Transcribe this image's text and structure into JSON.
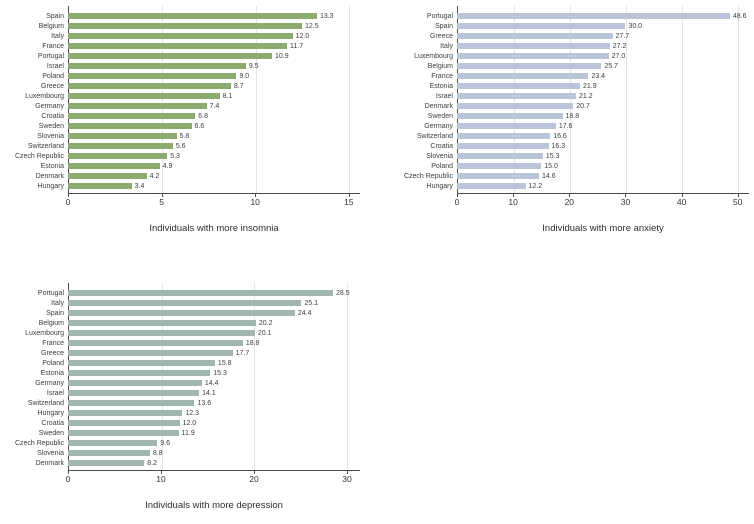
{
  "page": {
    "background": "#ffffff"
  },
  "chart_data": [
    {
      "type": "bar",
      "orientation": "horizontal",
      "title": "",
      "xlabel": "Individuals with more insomnia",
      "ylabel": "",
      "legend": "none",
      "grid": "vertical light gridlines at ticks",
      "bar_color": "#8cab6f",
      "xticks": [
        0,
        5,
        10,
        15
      ],
      "xlim": [
        0,
        15.6
      ],
      "categories": [
        "Spain",
        "Belgium",
        "Italy",
        "France",
        "Portugal",
        "Israel",
        "Poland",
        "Greece",
        "Luxembourg",
        "Germany",
        "Croatia",
        "Sweden",
        "Slovenia",
        "Switzerland",
        "Czech Republic",
        "Estonia",
        "Denmark",
        "Hungary"
      ],
      "values": [
        13.3,
        12.5,
        12.0,
        11.7,
        10.9,
        9.5,
        9.0,
        8.7,
        8.1,
        7.4,
        6.8,
        6.6,
        5.8,
        5.6,
        5.3,
        4.9,
        4.2,
        3.4
      ]
    },
    {
      "type": "bar",
      "orientation": "horizontal",
      "title": "",
      "xlabel": "Individuals with more anxiety",
      "ylabel": "",
      "legend": "none",
      "grid": "vertical light gridlines at ticks",
      "bar_color": "#b9c5d8",
      "xticks": [
        0,
        10,
        20,
        30,
        40,
        50
      ],
      "xlim": [
        0,
        52
      ],
      "categories": [
        "Portugal",
        "Spain",
        "Greece",
        "Italy",
        "Luxembourg",
        "Belgium",
        "France",
        "Estonia",
        "Israel",
        "Denmark",
        "Sweden",
        "Germany",
        "Switzerland",
        "Croatia",
        "Slovenia",
        "Poland",
        "Czech Republic",
        "Hungary"
      ],
      "values": [
        48.6,
        30.0,
        27.7,
        27.2,
        27.0,
        25.7,
        23.4,
        21.9,
        21.2,
        20.7,
        18.8,
        17.6,
        16.6,
        16.3,
        15.3,
        15.0,
        14.6,
        12.2
      ]
    },
    {
      "type": "bar",
      "orientation": "horizontal",
      "title": "",
      "xlabel": "Individuals with more depression",
      "ylabel": "",
      "legend": "none",
      "grid": "vertical light gridlines at ticks",
      "bar_color": "#a1b5b1",
      "xticks": [
        0,
        10,
        20,
        30
      ],
      "xlim": [
        0,
        31.4
      ],
      "categories": [
        "Portugal",
        "Italy",
        "Spain",
        "Belgium",
        "Luxembourg",
        "France",
        "Greece",
        "Poland",
        "Estonia",
        "Germany",
        "Israel",
        "Switzerland",
        "Hungary",
        "Croatia",
        "Sweden",
        "Czech Republic",
        "Slovenia",
        "Denmark"
      ],
      "values": [
        28.5,
        25.1,
        24.4,
        20.2,
        20.1,
        18.8,
        17.7,
        15.8,
        15.3,
        14.4,
        14.1,
        13.6,
        12.3,
        12.0,
        11.9,
        9.6,
        8.8,
        8.2
      ]
    }
  ]
}
